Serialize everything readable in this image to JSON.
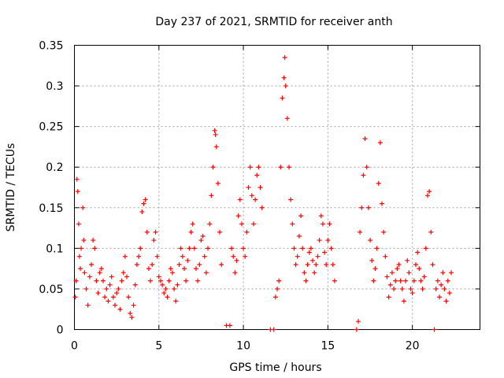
{
  "chart_data": {
    "type": "scatter",
    "title": "Day 237 of 2021, SRMTID for receiver anth",
    "xlabel": "GPS time / hours",
    "ylabel": "SRMTID / TECUs",
    "xlim": [
      0,
      24
    ],
    "ylim": [
      0,
      0.35
    ],
    "xticks": [
      0,
      5,
      10,
      15,
      20
    ],
    "xtick_labels": [
      "0",
      "5",
      "10",
      "15",
      "20"
    ],
    "yticks": [
      0,
      0.05,
      0.1,
      0.15,
      0.2,
      0.25,
      0.3,
      0.35
    ],
    "ytick_labels": [
      "0",
      "0.05",
      "0.1",
      "0.15",
      "0.2",
      "0.25",
      "0.3",
      "0.35"
    ],
    "grid": true,
    "marker": "+",
    "color": "#ff0000",
    "series": [
      {
        "name": "SRMTID",
        "points": [
          [
            0.05,
            0.04
          ],
          [
            0.1,
            0.06
          ],
          [
            0.15,
            0.185
          ],
          [
            0.2,
            0.17
          ],
          [
            0.25,
            0.13
          ],
          [
            0.3,
            0.09
          ],
          [
            0.35,
            0.075
          ],
          [
            0.4,
            0.1
          ],
          [
            0.5,
            0.15
          ],
          [
            0.55,
            0.11
          ],
          [
            0.6,
            0.07
          ],
          [
            0.7,
            0.05
          ],
          [
            0.8,
            0.03
          ],
          [
            0.9,
            0.065
          ],
          [
            1.0,
            0.08
          ],
          [
            1.1,
            0.11
          ],
          [
            1.2,
            0.1
          ],
          [
            1.3,
            0.06
          ],
          [
            1.4,
            0.045
          ],
          [
            1.5,
            0.07
          ],
          [
            1.6,
            0.075
          ],
          [
            1.7,
            0.06
          ],
          [
            1.8,
            0.04
          ],
          [
            1.9,
            0.05
          ],
          [
            2.0,
            0.035
          ],
          [
            2.1,
            0.055
          ],
          [
            2.2,
            0.065
          ],
          [
            2.3,
            0.04
          ],
          [
            2.4,
            0.03
          ],
          [
            2.5,
            0.045
          ],
          [
            2.6,
            0.05
          ],
          [
            2.7,
            0.025
          ],
          [
            2.8,
            0.06
          ],
          [
            2.9,
            0.07
          ],
          [
            3.0,
            0.09
          ],
          [
            3.1,
            0.065
          ],
          [
            3.2,
            0.04
          ],
          [
            3.3,
            0.02
          ],
          [
            3.4,
            0.015
          ],
          [
            3.5,
            0.03
          ],
          [
            3.6,
            0.055
          ],
          [
            3.7,
            0.08
          ],
          [
            3.8,
            0.09
          ],
          [
            3.9,
            0.1
          ],
          [
            4.0,
            0.145
          ],
          [
            4.1,
            0.155
          ],
          [
            4.2,
            0.16
          ],
          [
            4.3,
            0.12
          ],
          [
            4.4,
            0.075
          ],
          [
            4.5,
            0.06
          ],
          [
            4.6,
            0.08
          ],
          [
            4.7,
            0.11
          ],
          [
            4.8,
            0.12
          ],
          [
            4.9,
            0.09
          ],
          [
            5.0,
            0.065
          ],
          [
            5.1,
            0.06
          ],
          [
            5.2,
            0.055
          ],
          [
            5.3,
            0.045
          ],
          [
            5.4,
            0.05
          ],
          [
            5.5,
            0.04
          ],
          [
            5.6,
            0.06
          ],
          [
            5.7,
            0.075
          ],
          [
            5.8,
            0.07
          ],
          [
            5.9,
            0.05
          ],
          [
            6.0,
            0.035
          ],
          [
            6.1,
            0.055
          ],
          [
            6.2,
            0.08
          ],
          [
            6.3,
            0.1
          ],
          [
            6.4,
            0.09
          ],
          [
            6.5,
            0.075
          ],
          [
            6.6,
            0.06
          ],
          [
            6.7,
            0.085
          ],
          [
            6.8,
            0.1
          ],
          [
            6.9,
            0.12
          ],
          [
            7.0,
            0.13
          ],
          [
            7.1,
            0.1
          ],
          [
            7.2,
            0.075
          ],
          [
            7.3,
            0.06
          ],
          [
            7.4,
            0.08
          ],
          [
            7.5,
            0.11
          ],
          [
            7.6,
            0.115
          ],
          [
            7.7,
            0.09
          ],
          [
            7.8,
            0.07
          ],
          [
            7.9,
            0.1
          ],
          [
            8.0,
            0.13
          ],
          [
            8.1,
            0.165
          ],
          [
            8.2,
            0.2
          ],
          [
            8.3,
            0.245
          ],
          [
            8.35,
            0.24
          ],
          [
            8.4,
            0.225
          ],
          [
            8.5,
            0.18
          ],
          [
            8.6,
            0.12
          ],
          [
            8.7,
            0.08
          ],
          [
            9.0,
            0.005
          ],
          [
            9.2,
            0.005
          ],
          [
            9.3,
            0.1
          ],
          [
            9.4,
            0.09
          ],
          [
            9.5,
            0.07
          ],
          [
            9.6,
            0.085
          ],
          [
            9.7,
            0.14
          ],
          [
            9.8,
            0.16
          ],
          [
            9.9,
            0.13
          ],
          [
            10.0,
            0.1
          ],
          [
            10.1,
            0.09
          ],
          [
            10.2,
            0.12
          ],
          [
            10.3,
            0.175
          ],
          [
            10.4,
            0.2
          ],
          [
            10.5,
            0.165
          ],
          [
            10.6,
            0.13
          ],
          [
            10.7,
            0.16
          ],
          [
            10.8,
            0.19
          ],
          [
            10.9,
            0.2
          ],
          [
            11.0,
            0.175
          ],
          [
            11.1,
            0.15
          ],
          [
            11.6,
            0.0
          ],
          [
            11.8,
            0.0
          ],
          [
            11.9,
            0.04
          ],
          [
            12.0,
            0.05
          ],
          [
            12.1,
            0.06
          ],
          [
            12.2,
            0.2
          ],
          [
            12.3,
            0.285
          ],
          [
            12.4,
            0.31
          ],
          [
            12.45,
            0.335
          ],
          [
            12.5,
            0.3
          ],
          [
            12.6,
            0.26
          ],
          [
            12.7,
            0.2
          ],
          [
            12.8,
            0.16
          ],
          [
            12.9,
            0.13
          ],
          [
            13.0,
            0.1
          ],
          [
            13.1,
            0.08
          ],
          [
            13.2,
            0.09
          ],
          [
            13.3,
            0.115
          ],
          [
            13.4,
            0.14
          ],
          [
            13.5,
            0.1
          ],
          [
            13.6,
            0.07
          ],
          [
            13.7,
            0.06
          ],
          [
            13.8,
            0.08
          ],
          [
            13.9,
            0.095
          ],
          [
            14.0,
            0.1
          ],
          [
            14.1,
            0.085
          ],
          [
            14.2,
            0.07
          ],
          [
            14.3,
            0.08
          ],
          [
            14.4,
            0.09
          ],
          [
            14.5,
            0.11
          ],
          [
            14.6,
            0.14
          ],
          [
            14.7,
            0.13
          ],
          [
            14.8,
            0.095
          ],
          [
            14.9,
            0.08
          ],
          [
            15.0,
            0.11
          ],
          [
            15.1,
            0.13
          ],
          [
            15.2,
            0.1
          ],
          [
            15.3,
            0.08
          ],
          [
            15.4,
            0.06
          ],
          [
            16.7,
            0.0
          ],
          [
            16.8,
            0.01
          ],
          [
            16.9,
            0.12
          ],
          [
            17.0,
            0.15
          ],
          [
            17.1,
            0.19
          ],
          [
            17.2,
            0.235
          ],
          [
            17.3,
            0.2
          ],
          [
            17.4,
            0.15
          ],
          [
            17.5,
            0.11
          ],
          [
            17.6,
            0.085
          ],
          [
            17.7,
            0.06
          ],
          [
            17.8,
            0.075
          ],
          [
            17.9,
            0.1
          ],
          [
            18.0,
            0.18
          ],
          [
            18.1,
            0.23
          ],
          [
            18.2,
            0.155
          ],
          [
            18.3,
            0.12
          ],
          [
            18.4,
            0.09
          ],
          [
            18.5,
            0.065
          ],
          [
            18.6,
            0.04
          ],
          [
            18.7,
            0.055
          ],
          [
            18.8,
            0.07
          ],
          [
            18.9,
            0.05
          ],
          [
            19.0,
            0.06
          ],
          [
            19.1,
            0.075
          ],
          [
            19.2,
            0.08
          ],
          [
            19.3,
            0.06
          ],
          [
            19.4,
            0.05
          ],
          [
            19.5,
            0.035
          ],
          [
            19.6,
            0.06
          ],
          [
            19.7,
            0.085
          ],
          [
            19.8,
            0.07
          ],
          [
            19.9,
            0.05
          ],
          [
            20.0,
            0.045
          ],
          [
            20.1,
            0.06
          ],
          [
            20.2,
            0.08
          ],
          [
            20.3,
            0.095
          ],
          [
            20.4,
            0.075
          ],
          [
            20.5,
            0.06
          ],
          [
            20.6,
            0.05
          ],
          [
            20.7,
            0.065
          ],
          [
            20.8,
            0.1
          ],
          [
            20.9,
            0.165
          ],
          [
            21.0,
            0.17
          ],
          [
            21.1,
            0.12
          ],
          [
            21.2,
            0.08
          ],
          [
            21.3,
            0.0
          ],
          [
            21.4,
            0.05
          ],
          [
            21.5,
            0.06
          ],
          [
            21.6,
            0.04
          ],
          [
            21.7,
            0.055
          ],
          [
            21.8,
            0.07
          ],
          [
            21.9,
            0.05
          ],
          [
            22.0,
            0.035
          ],
          [
            22.1,
            0.06
          ],
          [
            22.2,
            0.045
          ],
          [
            22.3,
            0.07
          ]
        ]
      }
    ]
  }
}
